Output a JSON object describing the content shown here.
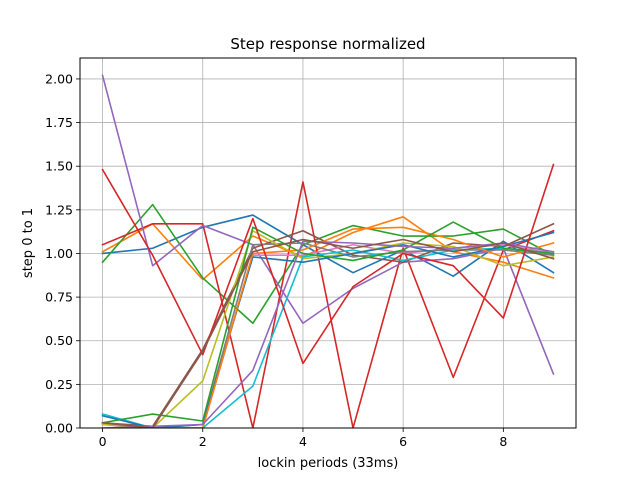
{
  "chart_data": {
    "type": "line",
    "title": "Step response normalized",
    "xlabel": "lockin periods (33ms)",
    "ylabel": "step 0 to 1",
    "xlim": [
      -0.45,
      9.45
    ],
    "ylim": [
      0.0,
      2.12
    ],
    "xticks": [
      0,
      2,
      4,
      6,
      8
    ],
    "yticks": [
      "0.00",
      "0.25",
      "0.50",
      "0.75",
      "1.00",
      "1.25",
      "1.50",
      "1.75",
      "2.00"
    ],
    "grid": true,
    "x": [
      0,
      1,
      2,
      3,
      4,
      5,
      6,
      7,
      8,
      9
    ],
    "series": [
      {
        "color": "#1f77b4",
        "values": [
          1.0,
          1.03,
          1.15,
          1.22,
          1.05,
          0.89,
          1.02,
          0.87,
          1.07,
          0.89
        ]
      },
      {
        "color": "#ff7f0e",
        "values": [
          1.01,
          1.17,
          0.85,
          1.1,
          0.98,
          1.12,
          1.21,
          1.01,
          0.95,
          0.86
        ]
      },
      {
        "color": "#2ca02c",
        "values": [
          0.95,
          1.28,
          0.86,
          0.6,
          1.05,
          1.16,
          1.1,
          1.1,
          1.14,
          0.99
        ]
      },
      {
        "color": "#d62728",
        "values": [
          1.05,
          1.17,
          1.17,
          0.0,
          1.41,
          0.0,
          1.03,
          0.29,
          1.02,
          1.13
        ]
      },
      {
        "color": "#9467bd",
        "values": [
          2.02,
          0.93,
          1.16,
          1.05,
          0.6,
          0.8,
          0.95,
          0.97,
          1.03,
          0.31
        ]
      },
      {
        "color": "#8c564b",
        "values": [
          0.03,
          0.01,
          0.45,
          1.03,
          1.13,
          0.99,
          0.95,
          1.06,
          1.04,
          1.17
        ]
      },
      {
        "color": "#e377c2",
        "values": [
          0.02,
          0.0,
          0.0,
          0.99,
          0.99,
          1.05,
          1.0,
          1.03,
          1.05,
          1.0
        ]
      },
      {
        "color": "#7f7f7f",
        "values": [
          0.03,
          0.0,
          0.02,
          1.05,
          1.06,
          0.98,
          1.01,
          1.02,
          1.02,
          0.99
        ]
      },
      {
        "color": "#bcbd22",
        "values": [
          0.02,
          0.0,
          0.27,
          1.13,
          0.97,
          1.0,
          1.06,
          1.04,
          0.93,
          0.98
        ]
      },
      {
        "color": "#17becf",
        "values": [
          0.08,
          0.0,
          0.0,
          0.24,
          0.98,
          1.02,
          0.96,
          1.02,
          1.03,
          1.0
        ]
      },
      {
        "color": "#1f77b4",
        "values": [
          0.07,
          0.0,
          0.02,
          0.98,
          0.95,
          1.0,
          1.05,
          0.98,
          1.04,
          1.12
        ]
      },
      {
        "color": "#ff7f0e",
        "values": [
          0.03,
          0.0,
          0.0,
          1.0,
          1.02,
          1.14,
          1.15,
          1.08,
          0.98,
          1.06
        ]
      },
      {
        "color": "#2ca02c",
        "values": [
          0.03,
          0.08,
          0.04,
          1.15,
          1.0,
          0.96,
          1.02,
          1.18,
          1.03,
          1.0
        ]
      },
      {
        "color": "#d62728",
        "values": [
          1.48,
          0.99,
          0.42,
          1.2,
          0.37,
          0.81,
          1.0,
          0.93,
          0.63,
          1.51
        ]
      },
      {
        "color": "#9467bd",
        "values": [
          0.0,
          0.01,
          0.02,
          0.33,
          1.07,
          1.06,
          1.04,
          1.03,
          1.06,
          1.01
        ]
      },
      {
        "color": "#8c564b",
        "values": [
          0.03,
          0.0,
          0.44,
          1.01,
          1.08,
          1.03,
          1.08,
          1.01,
          1.06,
          0.97
        ]
      }
    ]
  }
}
